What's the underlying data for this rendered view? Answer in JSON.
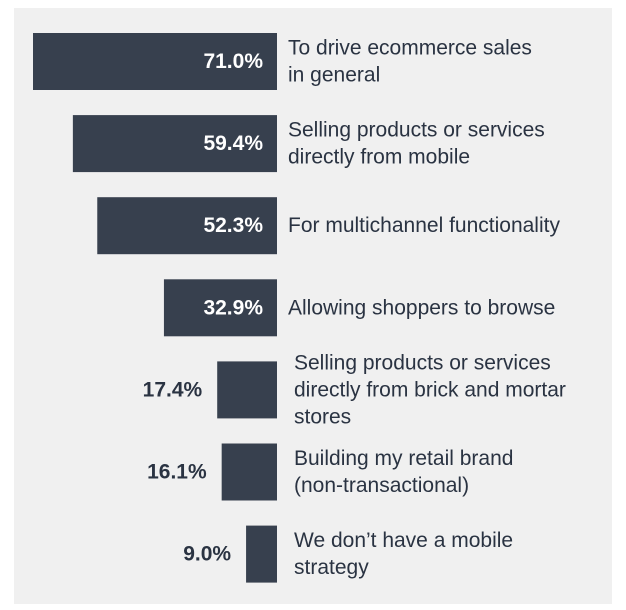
{
  "chart_data": {
    "type": "bar",
    "orientation": "horizontal",
    "bar_color": "#37404e",
    "value_color_inside": "#ffffff",
    "value_color_outside": "#2a3342",
    "label_color": "#2a3342",
    "xlim": [
      0,
      71
    ],
    "grid": false,
    "categories": [
      [
        "To drive ecommerce sales",
        "in general"
      ],
      [
        "Selling products or services",
        "directly from mobile"
      ],
      [
        "For multichannel functionality"
      ],
      [
        "Allowing shoppers to browse"
      ],
      [
        "Selling products or services",
        "directly from brick and mortar",
        "stores"
      ],
      [
        "Building my retail brand",
        "(non-transactional)"
      ],
      [
        "We don’t have a mobile",
        "strategy"
      ]
    ],
    "values": [
      71.0,
      59.4,
      52.3,
      32.9,
      17.4,
      16.1,
      9.0
    ],
    "value_labels": [
      "71.0%",
      "59.4%",
      "52.3%",
      "32.9%",
      "17.4%",
      "16.1%",
      "9.0%"
    ]
  }
}
